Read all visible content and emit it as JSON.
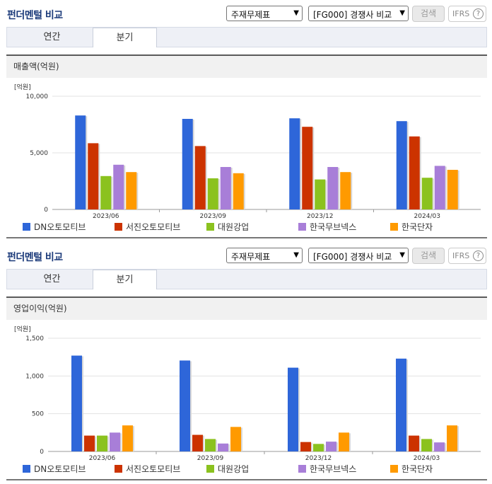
{
  "panels": [
    {
      "title": "펀더멘털 비교",
      "select1": "주재무제표",
      "select2": "[FG000] 경쟁사 비교",
      "search_label": "검색",
      "ifrs_label": "IFRS",
      "ifrs_help": "?",
      "tabs": [
        {
          "label": "연간",
          "active": false
        },
        {
          "label": "분기",
          "active": true
        }
      ],
      "section_title": "매출액(억원)"
    },
    {
      "title": "펀더멘털 비교",
      "select1": "주재무제표",
      "select2": "[FG000] 경쟁사 비교",
      "search_label": "검색",
      "ifrs_label": "IFRS",
      "ifrs_help": "?",
      "tabs": [
        {
          "label": "연간",
          "active": false
        },
        {
          "label": "분기",
          "active": true
        }
      ],
      "section_title": "영업이익(억원)"
    }
  ],
  "chart_data": [
    {
      "type": "bar",
      "unit_label": "[억원]",
      "categories": [
        "2023/06",
        "2023/09",
        "2023/12",
        "2024/03"
      ],
      "ylim": [
        0,
        10000
      ],
      "yticks": [
        0,
        5000,
        10000
      ],
      "ytick_labels": [
        "0",
        "5,000",
        "10,000"
      ],
      "grid": true,
      "legend_position": "bottom",
      "series": [
        {
          "name": "DN오토모티브",
          "color": "#2e66d9",
          "values": [
            8300,
            8000,
            8050,
            7800
          ]
        },
        {
          "name": "서진오토모티브",
          "color": "#cc3300",
          "values": [
            5850,
            5600,
            7300,
            6450
          ]
        },
        {
          "name": "대원강업",
          "color": "#8bc21f",
          "values": [
            2950,
            2750,
            2650,
            2800
          ]
        },
        {
          "name": "한국무브넥스",
          "color": "#a87ed8",
          "values": [
            3950,
            3750,
            3750,
            3850
          ]
        },
        {
          "name": "한국단자",
          "color": "#ff9a00",
          "values": [
            3300,
            3200,
            3300,
            3500
          ]
        }
      ]
    },
    {
      "type": "bar",
      "unit_label": "[억원]",
      "categories": [
        "2023/06",
        "2023/09",
        "2023/12",
        "2024/03"
      ],
      "ylim": [
        0,
        1500
      ],
      "yticks": [
        0,
        500,
        1000,
        1500
      ],
      "ytick_labels": [
        "0",
        "500",
        "1,000",
        "1,500"
      ],
      "grid": true,
      "legend_position": "bottom",
      "series": [
        {
          "name": "DN오토모티브",
          "color": "#2e66d9",
          "values": [
            1270,
            1205,
            1110,
            1230
          ]
        },
        {
          "name": "서진오토모티브",
          "color": "#cc3300",
          "values": [
            210,
            220,
            125,
            210
          ]
        },
        {
          "name": "대원강업",
          "color": "#8bc21f",
          "values": [
            210,
            165,
            100,
            165
          ]
        },
        {
          "name": "한국무브넥스",
          "color": "#a87ed8",
          "values": [
            250,
            105,
            130,
            120
          ]
        },
        {
          "name": "한국단자",
          "color": "#ff9a00",
          "values": [
            345,
            325,
            250,
            345
          ]
        }
      ]
    }
  ]
}
